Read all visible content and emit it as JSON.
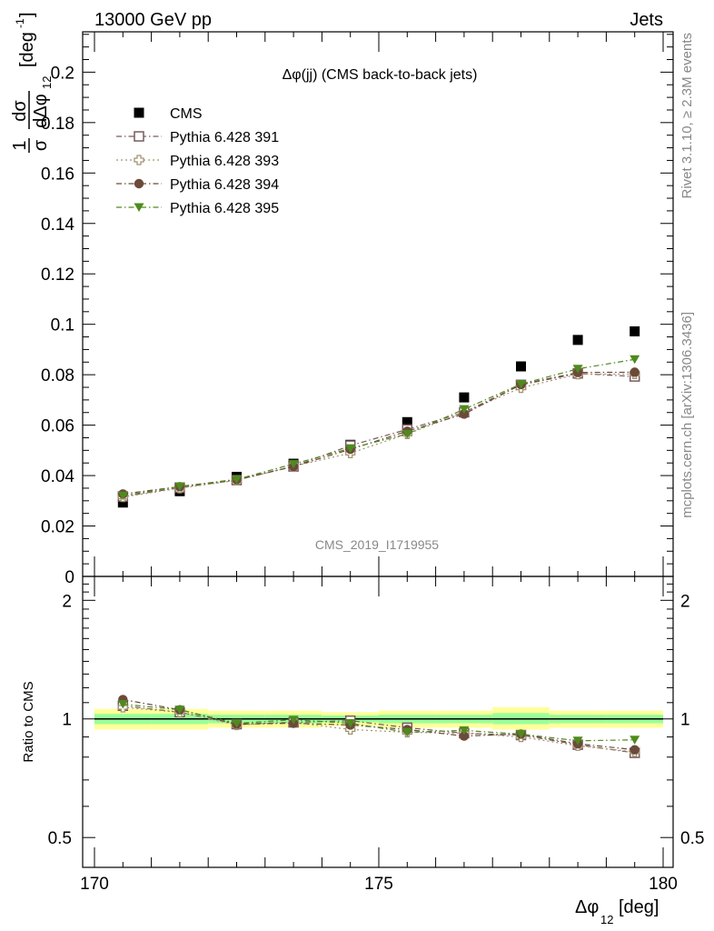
{
  "header": {
    "left": "13000 GeV pp",
    "right": "Jets"
  },
  "side_labels": {
    "rivet": "Rivet 3.1.10, ≥ 2.3M events",
    "mcplots": "mcplots.cern.ch [arXiv:1306.3436]"
  },
  "watermark": "CMS_2019_I1719955",
  "colors": {
    "cms": "#000000",
    "p391": "#7a5a5e",
    "p393": "#a39470",
    "p394": "#6b4a3a",
    "p395": "#4f8a1e",
    "band_outer": "#ffff99",
    "band_inner": "#99ff99"
  },
  "chart_data": [
    {
      "type": "scatter",
      "title": "Δφ(jj) (CMS back-to-back jets)",
      "ylabel_parts": {
        "frac_num": "1",
        "frac_den": "σ",
        "d_num": "dσ",
        "d_den": "dΔφ",
        "sub": "12",
        "unit": "[deg",
        "unit_exp": "-1",
        "unit_close": "]"
      },
      "xlim": [
        170,
        180
      ],
      "ylim": [
        0,
        0.216
      ],
      "yticks": [
        0,
        0.02,
        0.04,
        0.06,
        0.08,
        0.1,
        0.12,
        0.14,
        0.16,
        0.18,
        0.2
      ],
      "ytick_labels": [
        "0",
        "0.02",
        "0.04",
        "0.06",
        "0.08",
        "0.1",
        "0.12",
        "0.14",
        "0.16",
        "0.18",
        "0.2"
      ],
      "legend_position": "top-left",
      "x": [
        170.5,
        171.5,
        172.5,
        173.5,
        174.5,
        175.5,
        176.5,
        177.5,
        178.5,
        179.5
      ],
      "series": [
        {
          "name": "CMS",
          "key": "cms",
          "marker": "square-filled",
          "line": "none",
          "values": [
            0.0293,
            0.0338,
            0.0395,
            0.0447,
            0.0522,
            0.0612,
            0.071,
            0.0833,
            0.0938,
            0.0972
          ]
        },
        {
          "name": "Pythia 6.428 391",
          "key": "p391",
          "marker": "square-open",
          "line": "dashdot",
          "values": [
            0.0317,
            0.0352,
            0.0382,
            0.0436,
            0.0519,
            0.0583,
            0.0651,
            0.076,
            0.0805,
            0.0793
          ]
        },
        {
          "name": "Pythia 6.428 393",
          "key": "p393",
          "marker": "cross-open",
          "line": "dotted",
          "values": [
            0.0315,
            0.035,
            0.0381,
            0.0437,
            0.0489,
            0.0565,
            0.065,
            0.0748,
            0.0802,
            0.0803
          ]
        },
        {
          "name": "Pythia 6.428 394",
          "key": "p394",
          "marker": "circle-filled",
          "line": "dashdot",
          "values": [
            0.0327,
            0.0356,
            0.0384,
            0.0436,
            0.0504,
            0.0576,
            0.0644,
            0.0761,
            0.0809,
            0.081
          ]
        },
        {
          "name": "Pythia 6.428 395",
          "key": "p395",
          "marker": "triangle-down-filled",
          "line": "dashdot",
          "values": [
            0.032,
            0.0357,
            0.0385,
            0.0446,
            0.0508,
            0.0565,
            0.0663,
            0.0763,
            0.0823,
            0.0861
          ]
        }
      ]
    },
    {
      "type": "scatter",
      "ylabel": "Ratio to CMS",
      "xlabel_parts": {
        "main": "Δφ",
        "sub": "12",
        "unit": " [deg]"
      },
      "xlim": [
        170,
        180
      ],
      "ylim": [
        0.42,
        2.3
      ],
      "log_y": true,
      "yticks": [
        0.5,
        1,
        2
      ],
      "ytick_labels": [
        "0.5",
        "1",
        "2"
      ],
      "xticks": [
        170,
        175,
        180
      ],
      "xtick_labels": [
        "170",
        "175",
        "180"
      ],
      "x": [
        170.5,
        171.5,
        172.5,
        173.5,
        174.5,
        175.5,
        176.5,
        177.5,
        178.5,
        179.5
      ],
      "band_outer": [
        [
          0.94,
          1.06
        ],
        [
          0.94,
          1.06
        ],
        [
          0.95,
          1.05
        ],
        [
          0.95,
          1.05
        ],
        [
          0.96,
          1.04
        ],
        [
          0.95,
          1.05
        ],
        [
          0.95,
          1.05
        ],
        [
          0.94,
          1.07
        ],
        [
          0.95,
          1.05
        ],
        [
          0.95,
          1.05
        ]
      ],
      "band_inner": [
        [
          0.97,
          1.03
        ],
        [
          0.97,
          1.03
        ],
        [
          0.975,
          1.025
        ],
        [
          0.975,
          1.025
        ],
        [
          0.98,
          1.02
        ],
        [
          0.975,
          1.025
        ],
        [
          0.975,
          1.025
        ],
        [
          0.97,
          1.035
        ],
        [
          0.975,
          1.025
        ],
        [
          0.975,
          1.025
        ]
      ],
      "series": [
        {
          "name": "Pythia 6.428 391",
          "key": "p391",
          "marker": "square-open",
          "line": "dashdot",
          "values": [
            1.08,
            1.04,
            0.97,
            0.98,
            0.99,
            0.95,
            0.92,
            0.91,
            0.86,
            0.82
          ]
        },
        {
          "name": "Pythia 6.428 393",
          "key": "p393",
          "marker": "cross-open",
          "line": "dotted",
          "values": [
            1.07,
            1.04,
            0.965,
            0.98,
            0.94,
            0.925,
            0.92,
            0.9,
            0.855,
            0.825
          ]
        },
        {
          "name": "Pythia 6.428 394",
          "key": "p394",
          "marker": "circle-filled",
          "line": "dashdot",
          "values": [
            1.12,
            1.055,
            0.97,
            0.975,
            0.965,
            0.94,
            0.905,
            0.915,
            0.865,
            0.835
          ]
        },
        {
          "name": "Pythia 6.428 395",
          "key": "p395",
          "marker": "triangle-down-filled",
          "line": "dashdot",
          "values": [
            1.09,
            1.055,
            0.975,
            0.995,
            0.975,
            0.925,
            0.935,
            0.915,
            0.88,
            0.885
          ]
        }
      ]
    }
  ]
}
